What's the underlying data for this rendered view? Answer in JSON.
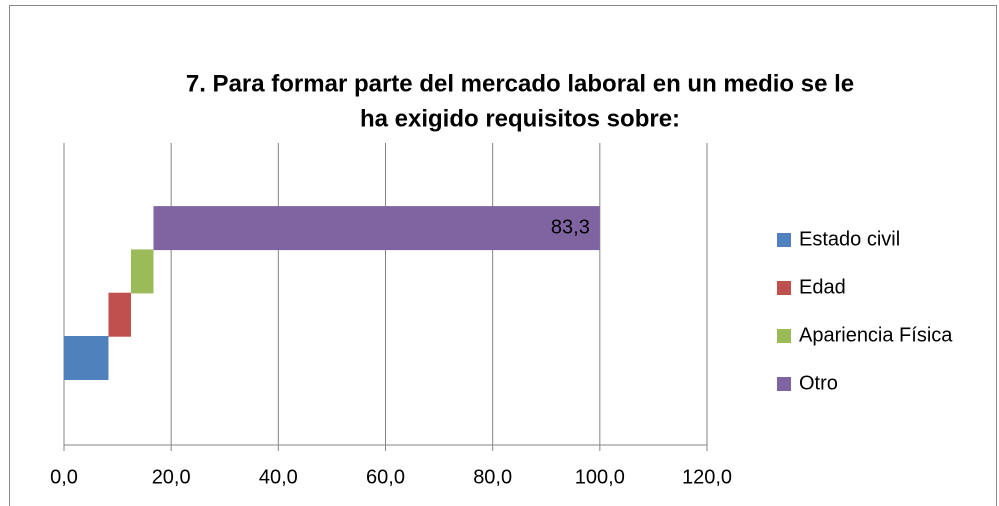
{
  "chart_data": {
    "type": "waterfall",
    "title": [
      "7. Para formar parte del mercado laboral en un medio se le",
      "ha exigido requisitos sobre:"
    ],
    "series": [
      {
        "name": "Estado civil",
        "color": "#4f81bd",
        "values": [
          8.3
        ]
      },
      {
        "name": "Edad",
        "color": "#c0504d",
        "values": [
          4.2
        ]
      },
      {
        "name": "Apariencia Física",
        "color": "#9bbb59",
        "values": [
          4.2
        ]
      },
      {
        "name": "Otro",
        "color": "#8064a2",
        "values": [
          83.3
        ],
        "value_labels": [
          "83,3"
        ]
      }
    ],
    "xlim": [
      0,
      120
    ],
    "xticks": [
      {
        "value": 0,
        "label": "0,0"
      },
      {
        "value": 20,
        "label": "20,0"
      },
      {
        "value": 40,
        "label": "40,0"
      },
      {
        "value": 60,
        "label": "60,0"
      },
      {
        "value": 80,
        "label": "80,0"
      },
      {
        "value": 100,
        "label": "100,0"
      },
      {
        "value": 120,
        "label": "120,0"
      }
    ],
    "grid": true,
    "legend": "right"
  }
}
